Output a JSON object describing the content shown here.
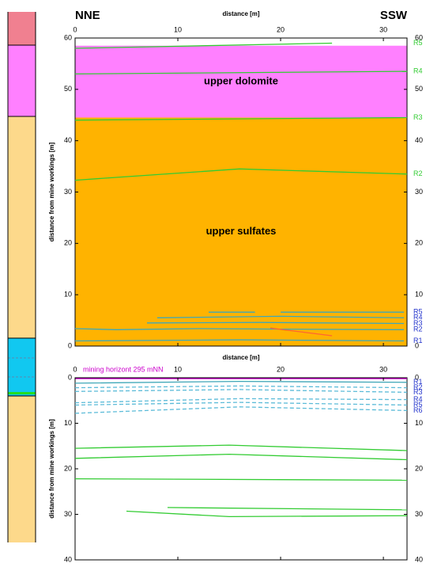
{
  "chart_data": [
    {
      "type": "line",
      "left_label": "NNE",
      "right_label": "SSW",
      "xlabel": "distance [m]",
      "ylabel": "distance from mine workings [m]",
      "xlim": [
        0,
        32.3
      ],
      "xticks": [
        0,
        10,
        20,
        30
      ],
      "ylim": [
        0,
        60
      ],
      "yticks": [
        0,
        10,
        20,
        30,
        40,
        50,
        60
      ],
      "y_reversed": false,
      "layers": [
        {
          "label": "upper dolomite",
          "color": "#ff80ff",
          "top": 58.5,
          "bottom": 44.5
        },
        {
          "label": "upper sulfates",
          "color": "#ffb300",
          "top": 44.5,
          "bottom": 0
        }
      ],
      "series": [
        {
          "name": "R5",
          "color": "#33cc33",
          "label_color": "#33cc33",
          "dashed": false,
          "x": [
            0,
            25
          ],
          "values": [
            58,
            59
          ]
        },
        {
          "name": "R4",
          "color": "#33cc33",
          "label_color": "#33cc33",
          "dashed": false,
          "x": [
            0,
            32.3
          ],
          "values": [
            53,
            53.5
          ]
        },
        {
          "name": "R3",
          "color": "#33cc33",
          "label_color": "#33cc33",
          "dashed": false,
          "x": [
            0,
            32.3
          ],
          "values": [
            44,
            44.5
          ]
        },
        {
          "name": "R2",
          "color": "#33cc33",
          "label_color": "#33cc33",
          "dashed": false,
          "x": [
            0,
            16,
            32.3
          ],
          "values": [
            32.3,
            34.5,
            33.5
          ]
        },
        {
          "name": "R5",
          "color": "#3fa8b8",
          "label_color": "#2233cc",
          "dashed": false,
          "x": [
            13,
            17.5,
            19,
            20,
            32
          ],
          "values": [
            6.6,
            6.6,
            null,
            6.6,
            6.6
          ]
        },
        {
          "name": "R4",
          "color": "#3fa8b8",
          "label_color": "#2233cc",
          "dashed": false,
          "x": [
            8,
            20,
            32
          ],
          "values": [
            5.5,
            5.8,
            5.5
          ]
        },
        {
          "name": "R3",
          "color": "#3fa8b8",
          "label_color": "#2233cc",
          "dashed": false,
          "x": [
            7,
            18,
            32
          ],
          "values": [
            4.5,
            4.6,
            4.4
          ]
        },
        {
          "name": "R2",
          "color": "#3fa8b8",
          "label_color": "#2233cc",
          "dashed": false,
          "x": [
            0,
            4,
            12,
            20,
            32
          ],
          "values": [
            3.4,
            3.2,
            3.4,
            3.3,
            3.2
          ]
        },
        {
          "name": "R1",
          "color": "#3fa8b8",
          "label_color": "#2233cc",
          "dashed": false,
          "x": [
            0,
            16,
            32
          ],
          "values": [
            1,
            1.2,
            1
          ]
        },
        {
          "color": "#ff6633",
          "dashed": false,
          "x": [
            19,
            25
          ],
          "values": [
            3.5,
            2
          ]
        }
      ]
    },
    {
      "type": "line",
      "xlabel": "distance [m]",
      "ylabel": "distance from mine workings [m]",
      "annotation": "mining horizont 295 mNN",
      "annotation_color": "#cc00cc",
      "xlim": [
        0,
        32.3
      ],
      "xticks": [
        0,
        10,
        20,
        30
      ],
      "ylim": [
        0,
        40
      ],
      "yticks": [
        0,
        10,
        20,
        30,
        40
      ],
      "y_reversed": true,
      "series": [
        {
          "color": "#cc00cc",
          "dashed": false,
          "x": [
            0,
            32.3
          ],
          "values": [
            0.2,
            0.2
          ]
        },
        {
          "name": "R1",
          "color": "#3fa8b8",
          "label_color": "#2233cc",
          "dashed": false,
          "x": [
            0,
            16,
            32.3
          ],
          "values": [
            1.2,
            0.8,
            1
          ]
        },
        {
          "name": "R2",
          "color": "#5bbbd8",
          "label_color": "#2233cc",
          "dashed": true,
          "x": [
            0,
            16,
            32.3
          ],
          "values": [
            2.2,
            1.8,
            2.2
          ]
        },
        {
          "name": "R3",
          "color": "#5bbbd8",
          "label_color": "#2233cc",
          "dashed": true,
          "x": [
            0,
            16,
            32.3
          ],
          "values": [
            3,
            2.6,
            3.2
          ]
        },
        {
          "name": "R4",
          "color": "#5bbbd8",
          "label_color": "#2233cc",
          "dashed": true,
          "x": [
            0,
            16,
            32.3
          ],
          "values": [
            5.5,
            4.6,
            4.8
          ]
        },
        {
          "name": "R5",
          "color": "#5bbbd8",
          "label_color": "#2233cc",
          "dashed": true,
          "x": [
            0,
            16,
            32.3
          ],
          "values": [
            6,
            5.4,
            6
          ]
        },
        {
          "name": "R6",
          "color": "#5bbbd8",
          "label_color": "#2233cc",
          "dashed": true,
          "x": [
            0,
            16,
            32.3
          ],
          "values": [
            7.8,
            6.4,
            7.2
          ]
        },
        {
          "color": "#33cc33",
          "dashed": false,
          "x": [
            0,
            15,
            32.3
          ],
          "values": [
            15.5,
            14.8,
            16
          ]
        },
        {
          "color": "#33cc33",
          "dashed": false,
          "x": [
            0,
            15,
            32.3
          ],
          "values": [
            17.7,
            16.8,
            18
          ]
        },
        {
          "color": "#33cc33",
          "dashed": false,
          "x": [
            0,
            32.3
          ],
          "values": [
            22.2,
            22.5
          ]
        },
        {
          "color": "#33cc33",
          "dashed": false,
          "x": [
            9,
            32.3
          ],
          "values": [
            28.5,
            29
          ]
        },
        {
          "color": "#33cc33",
          "dashed": false,
          "x": [
            5,
            15,
            32.3
          ],
          "values": [
            29.3,
            30.5,
            30.3
          ]
        }
      ]
    }
  ]
}
